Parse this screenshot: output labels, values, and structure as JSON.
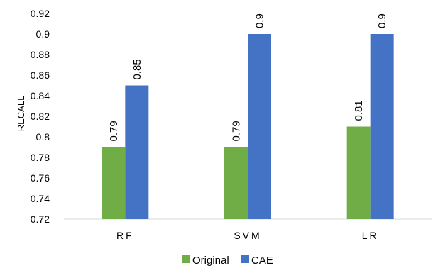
{
  "chart_data": {
    "type": "bar",
    "title": "",
    "xlabel": "",
    "ylabel": "RECALL",
    "ylim": [
      0.72,
      0.92
    ],
    "yticks": [
      "0.72",
      "0.74",
      "0.76",
      "0.78",
      "0.8",
      "0.82",
      "0.84",
      "0.86",
      "0.88",
      "0.9",
      "0.92"
    ],
    "categories": [
      "RF",
      "SVM",
      "LR"
    ],
    "series": [
      {
        "name": "Original",
        "color": "#70AD47",
        "values": [
          0.79,
          0.79,
          0.81
        ],
        "labels": [
          "0.79",
          "0.79",
          "0.81"
        ]
      },
      {
        "name": "CAE",
        "color": "#4472C4",
        "values": [
          0.85,
          0.9,
          0.9
        ],
        "labels": [
          "0.85",
          "0.9",
          "0.9"
        ]
      }
    ],
    "grid": false,
    "legend": "bottom"
  }
}
